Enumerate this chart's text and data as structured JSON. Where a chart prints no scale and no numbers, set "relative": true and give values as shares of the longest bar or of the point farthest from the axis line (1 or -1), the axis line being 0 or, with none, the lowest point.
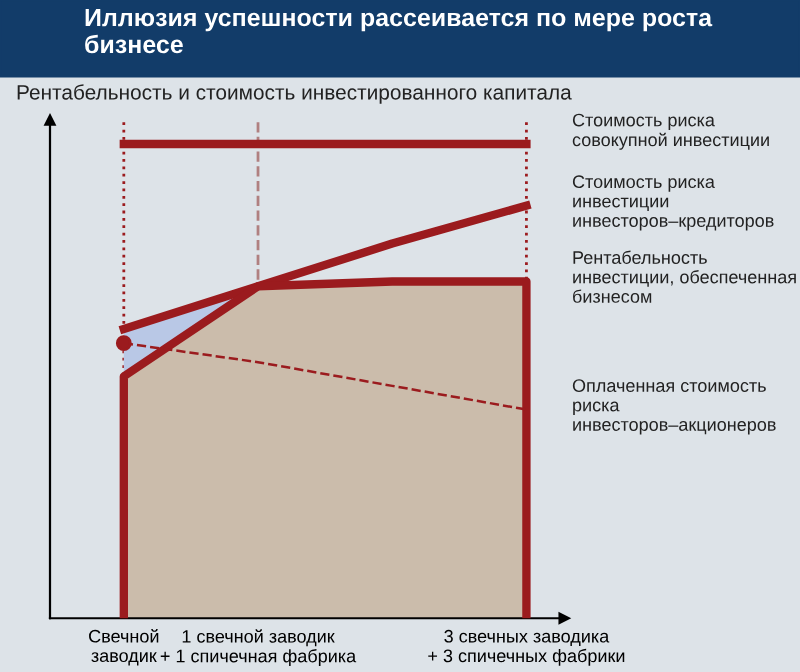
{
  "chart_data": {
    "type": "line",
    "title": "Иллюзия успешности рассеивается по мере роста бизнесе",
    "ylabel": "Рентабельность и стоимость инвестированного капитала",
    "relative": true,
    "categories": [
      "Свечной\nзаводик",
      "1 свечной заводик\n+ 1 спичечная фабрика",
      null,
      "3 свечных заводика\n+ 3 спичечных фабрики"
    ],
    "series": [
      {
        "name": "Стоимость риска совокупной инвестиции",
        "color": "#9b1b1e",
        "values": [
          1,
          1,
          1,
          1
        ]
      },
      {
        "name": "Стоимость риска инвестиции инвесторов–кредиторов",
        "color": "#9b1b1e",
        "values": [
          0.61,
          0.7,
          0.79,
          0.87
        ],
        "lower": [
          0.51,
          0.7,
          null,
          null
        ],
        "upper": [
          0.61,
          0.7,
          null,
          null
        ]
      },
      {
        "name": "Рентабельность инвестиции, обеспеченная бизнесом",
        "type": "area",
        "color": "#cbbcab",
        "values": [
          0.51,
          0.7,
          0.71,
          0.71
        ]
      },
      {
        "name": "Оплаченная стоимость риска инвесторов–акционеров",
        "color": "#9b1b1e",
        "line_style": "dashed",
        "values": [
          0.58,
          0.54,
          0.49,
          0.44
        ]
      },
      {
        "type": "scatter",
        "marker": "circle",
        "color": "#9b1b1e",
        "values": [
          0.58,
          null,
          null,
          null
        ]
      }
    ],
    "ref_lines": [
      {
        "axis": "x",
        "value": "Свечной\nзаводик",
        "line_style": "dotted",
        "color": "#9b1b1e"
      },
      {
        "axis": "x",
        "value": "1 свечной заводик\n+ 1 спичечная фабрика",
        "line_style": "dashed",
        "color": "#b08080"
      },
      {
        "axis": "x",
        "value": "3 свечных заводика\n+ 3 спичечных фабрики",
        "line_style": "dotted",
        "color": "#9b1b1e"
      }
    ]
  }
}
